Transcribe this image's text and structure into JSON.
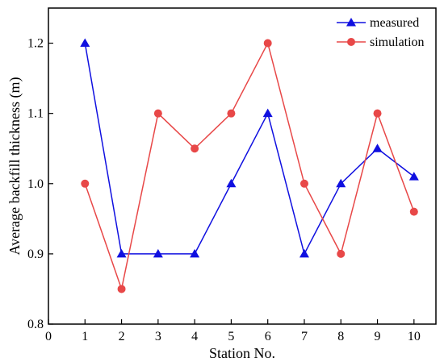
{
  "chart_data": {
    "type": "line",
    "title": "",
    "xlabel": "Station No.",
    "ylabel": "Average backfill thickness (m)",
    "xlim": [
      0,
      10.6
    ],
    "ylim": [
      0.8,
      1.25
    ],
    "xticks": [
      "0",
      "1",
      "2",
      "3",
      "4",
      "5",
      "6",
      "7",
      "8",
      "9",
      "10"
    ],
    "yticks": [
      "0.8",
      "0.9",
      "1.0",
      "1.1",
      "1.2"
    ],
    "grid": false,
    "legend_position": "top-right",
    "x": [
      1,
      2,
      3,
      4,
      5,
      6,
      7,
      8,
      9,
      10
    ],
    "series": [
      {
        "name": "measured",
        "marker": "triangle",
        "color": "#1010e0",
        "values": [
          1.2,
          0.9,
          0.9,
          0.9,
          1.0,
          1.1,
          0.9,
          1.0,
          1.05,
          1.01
        ]
      },
      {
        "name": "simulation",
        "marker": "circle",
        "color": "#e84848",
        "values": [
          1.0,
          0.85,
          1.1,
          1.05,
          1.1,
          1.2,
          1.0,
          0.9,
          1.1,
          0.96
        ]
      }
    ]
  }
}
